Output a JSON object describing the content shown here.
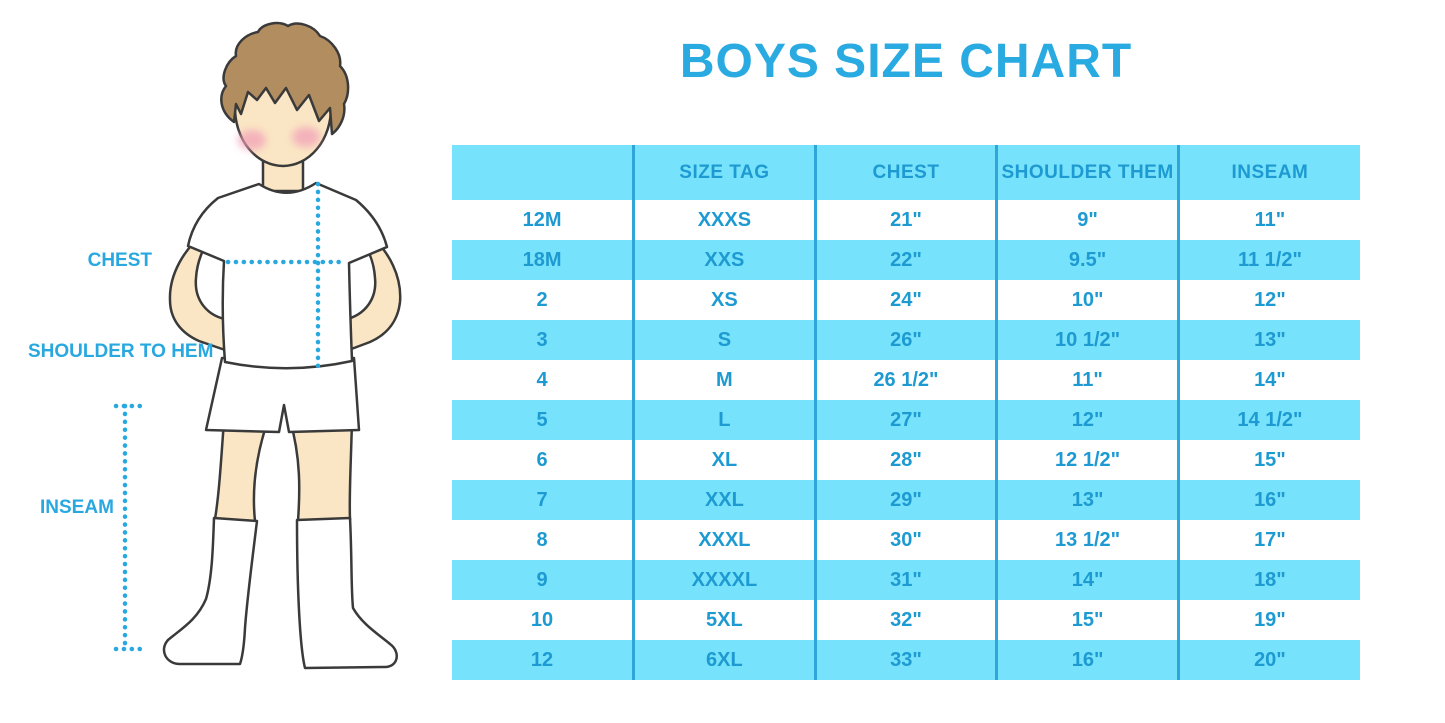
{
  "title": "BOYS SIZE CHART",
  "colors": {
    "accent": "#29ABE2",
    "band_cyan": "#76E2FB",
    "divider_blue": "#2FA5D9",
    "table_text": "#1E9AD2",
    "label_blue": "#29A8E0",
    "skin": "#FAE6C4",
    "hair_brown": "#B18D60",
    "blush_pink": "#F2A0B8",
    "outline": "#3A3A3A"
  },
  "figure": {
    "labels": {
      "chest": "CHEST",
      "shoulder_to_hem": "SHOULDER TO HEM",
      "inseam": "INSEAM"
    }
  },
  "chart_data": {
    "type": "table",
    "title": "BOYS SIZE CHART",
    "columns": [
      "",
      "SIZE TAG",
      "CHEST",
      "SHOULDER THEM",
      "INSEAM"
    ],
    "rows": [
      [
        "12M",
        "XXXS",
        "21\"",
        "9\"",
        "11\""
      ],
      [
        "18M",
        "XXS",
        "22\"",
        "9.5\"",
        "11 1/2\""
      ],
      [
        "2",
        "XS",
        "24\"",
        "10\"",
        "12\""
      ],
      [
        "3",
        "S",
        "26\"",
        "10 1/2\"",
        "13\""
      ],
      [
        "4",
        "M",
        "26 1/2\"",
        "11\"",
        "14\""
      ],
      [
        "5",
        "L",
        "27\"",
        "12\"",
        "14 1/2\""
      ],
      [
        "6",
        "XL",
        "28\"",
        "12 1/2\"",
        "15\""
      ],
      [
        "7",
        "XXL",
        "29\"",
        "13\"",
        "16\""
      ],
      [
        "8",
        "XXXL",
        "30\"",
        "13 1/2\"",
        "17\""
      ],
      [
        "9",
        "XXXXL",
        "31\"",
        "14\"",
        "18\""
      ],
      [
        "10",
        "5XL",
        "32\"",
        "15\"",
        "19\""
      ],
      [
        "12",
        "6XL",
        "33\"",
        "16\"",
        "20\""
      ]
    ],
    "layout_hints": {
      "header_background": "#76E2FB",
      "alternating_rows": "white / cyan starting white",
      "column_dividers": true,
      "outer_border": false
    }
  }
}
